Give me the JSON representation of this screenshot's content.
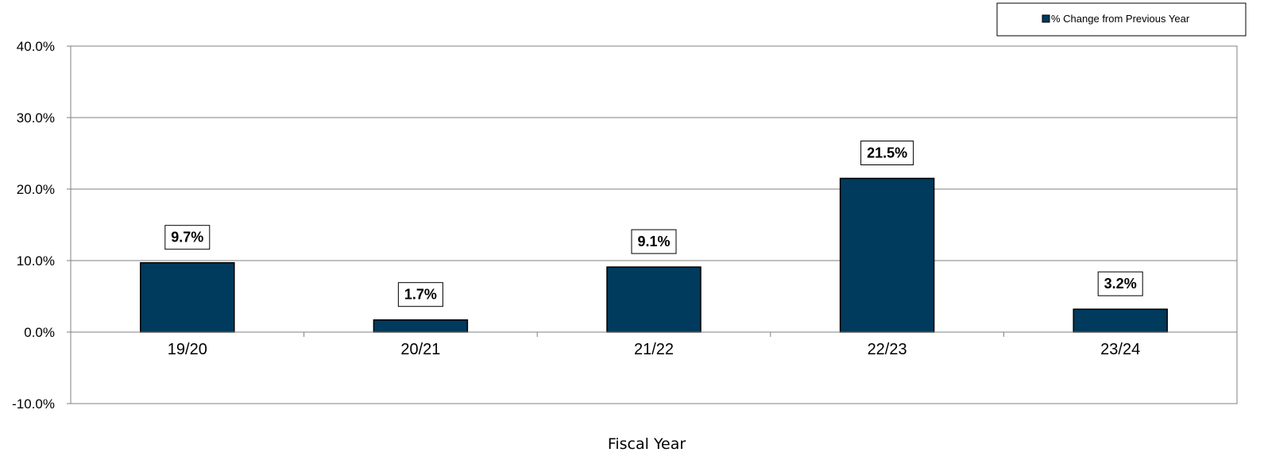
{
  "chart_data": {
    "type": "bar",
    "title": "",
    "xlabel": "Fiscal Year",
    "ylabel": "",
    "categories": [
      "19/20",
      "20/21",
      "21/22",
      "22/23",
      "23/24"
    ],
    "series": [
      {
        "name": "% Change from Previous Year",
        "values": [
          9.7,
          1.7,
          9.1,
          21.5,
          3.2
        ],
        "labels": [
          "9.7%",
          "1.7%",
          "9.1%",
          "21.5%",
          "3.2%"
        ],
        "color": "#003a5d"
      }
    ],
    "ylim": [
      -10,
      40
    ],
    "yticks": [
      -10,
      0,
      10,
      20,
      30,
      40
    ],
    "ytick_labels": [
      "-10.0%",
      "0.0%",
      "10.0%",
      "20.0%",
      "30.0%",
      "40.0%"
    ],
    "grid": true,
    "legend_position": "top-right"
  }
}
